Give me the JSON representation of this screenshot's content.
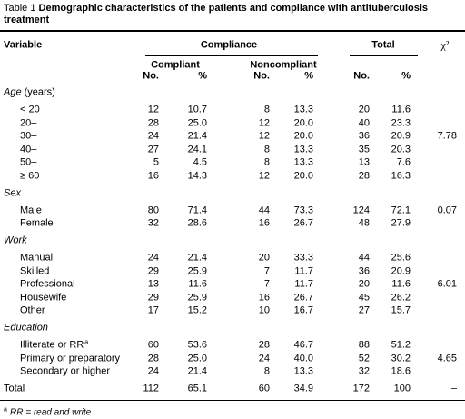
{
  "title": {
    "label": "Table 1",
    "text": "Demographic characteristics of the patients and compliance with antituberculosis treatment"
  },
  "header": {
    "variable": "Variable",
    "compliance": "Compliance",
    "total": "Total",
    "chi2": "χ²",
    "compliant": "Compliant",
    "noncompliant": "Noncompliant",
    "subcols": [
      "No.",
      "%",
      "No.",
      "%",
      "No.",
      "%"
    ]
  },
  "sections": [
    {
      "name": "Age",
      "unit": "(years)",
      "rows": [
        {
          "label": "< 20",
          "cells": [
            "12",
            "10.7",
            "8",
            "13.3",
            "20",
            "11.6"
          ]
        },
        {
          "label": "20–",
          "cells": [
            "28",
            "25.0",
            "12",
            "20.0",
            "40",
            "23.3"
          ]
        },
        {
          "label": "30–",
          "cells": [
            "24",
            "21.4",
            "12",
            "20.0",
            "36",
            "20.9"
          ],
          "chi2": "7.78"
        },
        {
          "label": "40–",
          "cells": [
            "27",
            "24.1",
            "8",
            "13.3",
            "35",
            "20.3"
          ]
        },
        {
          "label": "50–",
          "cells": [
            "5",
            "4.5",
            "8",
            "13.3",
            "13",
            "7.6"
          ]
        },
        {
          "label": "≥ 60",
          "cells": [
            "16",
            "14.3",
            "12",
            "20.0",
            "28",
            "16.3"
          ]
        }
      ]
    },
    {
      "name": "Sex",
      "rows": [
        {
          "label": "Male",
          "cells": [
            "80",
            "71.4",
            "44",
            "73.3",
            "124",
            "72.1"
          ],
          "chi2": "0.07"
        },
        {
          "label": "Female",
          "cells": [
            "32",
            "28.6",
            "16",
            "26.7",
            "48",
            "27.9"
          ]
        }
      ]
    },
    {
      "name": "Work",
      "rows": [
        {
          "label": "Manual",
          "cells": [
            "24",
            "21.4",
            "20",
            "33.3",
            "44",
            "25.6"
          ]
        },
        {
          "label": "Skilled",
          "cells": [
            "29",
            "25.9",
            "7",
            "11.7",
            "36",
            "20.9"
          ]
        },
        {
          "label": "Professional",
          "cells": [
            "13",
            "11.6",
            "7",
            "11.7",
            "20",
            "11.6"
          ],
          "chi2": "6.01"
        },
        {
          "label": "Housewife",
          "cells": [
            "29",
            "25.9",
            "16",
            "26.7",
            "45",
            "26.2"
          ]
        },
        {
          "label": "Other",
          "cells": [
            "17",
            "15.2",
            "10",
            "16.7",
            "27",
            "15.7"
          ]
        }
      ]
    },
    {
      "name": "Education",
      "rows": [
        {
          "label": "Illiterate or RR",
          "note_mark": "a",
          "cells": [
            "60",
            "53.6",
            "28",
            "46.7",
            "88",
            "51.2"
          ]
        },
        {
          "label": "Primary or preparatory",
          "cells": [
            "28",
            "25.0",
            "24",
            "40.0",
            "52",
            "30.2"
          ],
          "chi2": "4.65"
        },
        {
          "label": "Secondary or higher",
          "cells": [
            "24",
            "21.4",
            "8",
            "13.3",
            "32",
            "18.6"
          ]
        }
      ]
    }
  ],
  "total": {
    "label": "Total",
    "cells": [
      "112",
      "65.1",
      "60",
      "34.9",
      "172",
      "100"
    ],
    "chi2": "–"
  },
  "footnote": {
    "mark": "a",
    "text": "RR = read and write"
  }
}
